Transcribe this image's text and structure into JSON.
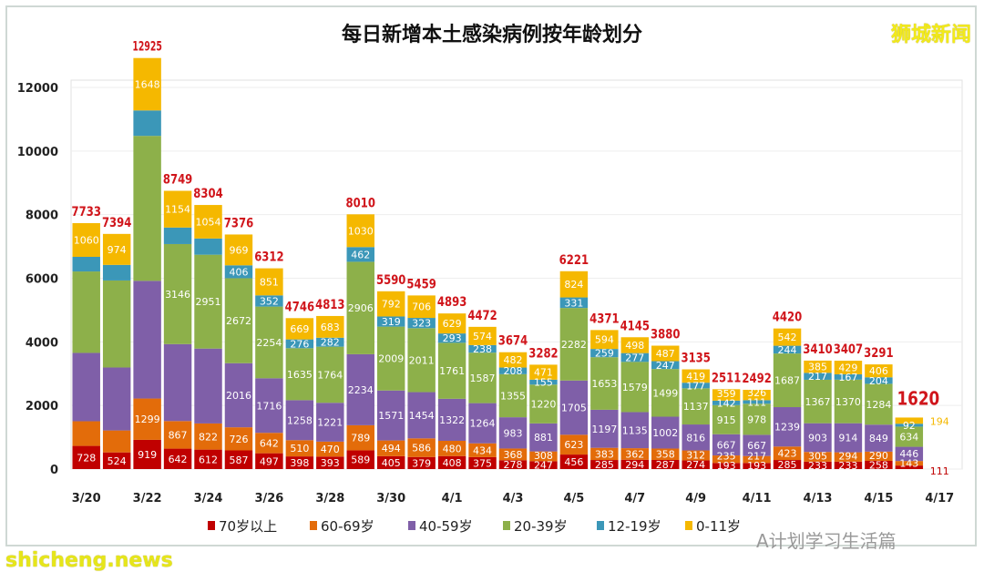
{
  "chart_data": {
    "type": "bar",
    "stacked": true,
    "title": "每日新增本土感染病例按年龄划分",
    "categories": [
      "3/20",
      "3/21",
      "3/22",
      "3/23",
      "3/24",
      "3/25",
      "3/26",
      "3/27",
      "3/28",
      "3/29",
      "3/30",
      "3/31",
      "4/1",
      "4/2",
      "4/3",
      "4/4",
      "4/5",
      "4/6",
      "4/7",
      "4/8",
      "4/9",
      "4/10",
      "4/11",
      "4/12",
      "4/13",
      "4/14",
      "4/15",
      "4/16",
      "4/17"
    ],
    "x_tick_labels": [
      "3/20",
      "3/22",
      "3/24",
      "3/26",
      "3/28",
      "3/30",
      "4/1",
      "4/3",
      "4/5",
      "4/7",
      "4/9",
      "4/11",
      "4/13",
      "4/15",
      "4/17"
    ],
    "y_ticks": [
      0,
      2000,
      4000,
      6000,
      8000,
      10000,
      12000
    ],
    "ylim": [
      0,
      12500
    ],
    "grid": true,
    "legend_position": "bottom",
    "totals": [
      7733,
      7394,
      12925,
      8749,
      8304,
      7376,
      6312,
      4746,
      4813,
      8010,
      5590,
      5459,
      4893,
      4472,
      3674,
      3282,
      6221,
      4371,
      4145,
      3880,
      3135,
      2511,
      2492,
      4420,
      3410,
      3407,
      3291,
      1620,
      null
    ],
    "series": [
      {
        "name": "70岁以上",
        "color": "#c00000",
        "values": [
          728,
          524,
          919,
          642,
          612,
          587,
          497,
          398,
          393,
          589,
          405,
          379,
          408,
          375,
          278,
          247,
          456,
          285,
          294,
          287,
          274,
          193,
          193,
          285,
          233,
          233,
          258,
          111,
          null
        ],
        "labeled": [
          1,
          1,
          1,
          1,
          1,
          1,
          1,
          1,
          1,
          1,
          1,
          1,
          1,
          1,
          1,
          1,
          1,
          1,
          1,
          1,
          1,
          1,
          1,
          1,
          1,
          1,
          1,
          1,
          0
        ]
      },
      {
        "name": "60-69岁",
        "color": "#e36c0a",
        "values": [
          775,
          690,
          1299,
          867,
          822,
          726,
          642,
          510,
          470,
          789,
          494,
          586,
          480,
          434,
          368,
          308,
          623,
          383,
          362,
          358,
          312,
          235,
          217,
          423,
          305,
          294,
          290,
          143,
          null
        ],
        "labeled": [
          0,
          0,
          1,
          1,
          1,
          1,
          1,
          1,
          1,
          1,
          1,
          1,
          1,
          1,
          1,
          1,
          1,
          1,
          1,
          1,
          1,
          1,
          1,
          1,
          1,
          1,
          1,
          1,
          0
        ]
      },
      {
        "name": "40-59岁",
        "color": "#7f5fa8",
        "values": [
          2150,
          1980,
          3700,
          2420,
          2355,
          2016,
          1716,
          1258,
          1221,
          2234,
          1571,
          1454,
          1322,
          1264,
          983,
          881,
          1705,
          1197,
          1135,
          1002,
          816,
          667,
          667,
          1239,
          903,
          914,
          849,
          446,
          null
        ],
        "labeled": [
          0,
          0,
          0,
          0,
          0,
          1,
          1,
          1,
          1,
          1,
          1,
          1,
          1,
          1,
          1,
          1,
          1,
          1,
          1,
          1,
          1,
          1,
          1,
          1,
          1,
          1,
          1,
          1,
          0
        ]
      },
      {
        "name": "20-39岁",
        "color": "#8db04a",
        "values": [
          2560,
          2736,
          4559,
          3146,
          2951,
          2672,
          2254,
          1635,
          1764,
          2906,
          2009,
          2011,
          1761,
          1587,
          1355,
          1220,
          2282,
          1653,
          1579,
          1499,
          1137,
          915,
          978,
          1687,
          1367,
          1370,
          1284,
          634,
          null
        ],
        "labeled": [
          0,
          0,
          0,
          1,
          1,
          1,
          1,
          1,
          1,
          1,
          1,
          1,
          1,
          1,
          1,
          1,
          1,
          1,
          1,
          1,
          1,
          1,
          1,
          1,
          1,
          1,
          1,
          1,
          0
        ]
      },
      {
        "name": "12-19岁",
        "color": "#3b97b8",
        "values": [
          460,
          490,
          800,
          520,
          510,
          406,
          352,
          276,
          282,
          462,
          319,
          323,
          293,
          238,
          208,
          155,
          331,
          259,
          277,
          247,
          177,
          142,
          111,
          244,
          217,
          167,
          204,
          92,
          null
        ],
        "labeled": [
          0,
          0,
          0,
          0,
          0,
          1,
          1,
          1,
          1,
          1,
          1,
          1,
          1,
          1,
          1,
          1,
          1,
          1,
          1,
          1,
          1,
          1,
          1,
          1,
          1,
          1,
          1,
          1,
          0
        ]
      },
      {
        "name": "0-11岁",
        "color": "#f5b800",
        "values": [
          1060,
          974,
          1648,
          1154,
          1054,
          969,
          851,
          669,
          683,
          1030,
          792,
          706,
          629,
          574,
          482,
          471,
          824,
          594,
          498,
          487,
          419,
          359,
          326,
          542,
          385,
          429,
          406,
          194,
          null
        ],
        "labeled": [
          1,
          1,
          1,
          1,
          1,
          1,
          1,
          1,
          1,
          1,
          1,
          1,
          1,
          1,
          1,
          1,
          1,
          1,
          1,
          1,
          1,
          1,
          1,
          1,
          1,
          1,
          1,
          1,
          0
        ]
      }
    ]
  },
  "watermarks": {
    "top_right": "狮城新闻",
    "bottom_left": "shicheng.news",
    "bottom_right": "A计划学习生活篇"
  }
}
